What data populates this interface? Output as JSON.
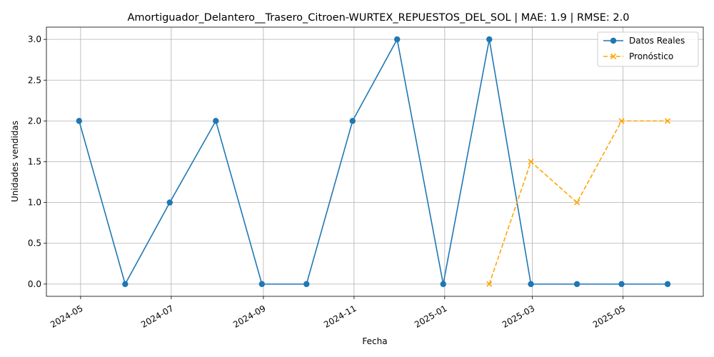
{
  "chart_data": {
    "type": "line",
    "title": "Amortiguador_Delantero__Trasero_Citroen-WURTEX_REPUESTOS_DEL_SOL | MAE: 1.9 | RMSE: 2.0",
    "xlabel": "Fecha",
    "ylabel": "Unidades vendidas",
    "xlim": [
      "2024-04-08",
      "2025-06-24"
    ],
    "ylim": [
      -0.15,
      3.15
    ],
    "x_ticks": [
      "2024-05",
      "2024-07",
      "2024-09",
      "2024-11",
      "2025-01",
      "2025-03",
      "2025-05"
    ],
    "x_tick_dates": [
      "2024-05-01",
      "2024-07-01",
      "2024-09-01",
      "2024-11-01",
      "2025-01-01",
      "2025-03-01",
      "2025-05-01"
    ],
    "y_ticks": [
      "0.0",
      "0.5",
      "1.0",
      "1.5",
      "2.0",
      "2.5",
      "3.0"
    ],
    "y_tick_values": [
      0,
      0.5,
      1,
      1.5,
      2,
      2.5,
      3
    ],
    "grid": true,
    "legend": "top-right",
    "series": [
      {
        "name": "Datos Reales",
        "color": "#1f77b4",
        "style": "solid",
        "marker": "circle",
        "x": [
          "2024-04-30",
          "2024-05-31",
          "2024-06-30",
          "2024-07-31",
          "2024-08-31",
          "2024-09-30",
          "2024-10-31",
          "2024-11-30",
          "2024-12-31",
          "2025-01-31",
          "2025-02-28",
          "2025-03-31",
          "2025-04-30",
          "2025-05-31"
        ],
        "values": [
          2,
          0,
          1,
          2,
          0,
          0,
          2,
          3,
          0,
          3,
          0,
          0,
          0,
          0
        ]
      },
      {
        "name": "Pronóstico",
        "color": "#ffa500",
        "style": "dashed",
        "marker": "x",
        "x": [
          "2025-01-31",
          "2025-02-28",
          "2025-03-31",
          "2025-04-30",
          "2025-05-31"
        ],
        "values": [
          0,
          1.5,
          1,
          2,
          2
        ]
      }
    ]
  }
}
